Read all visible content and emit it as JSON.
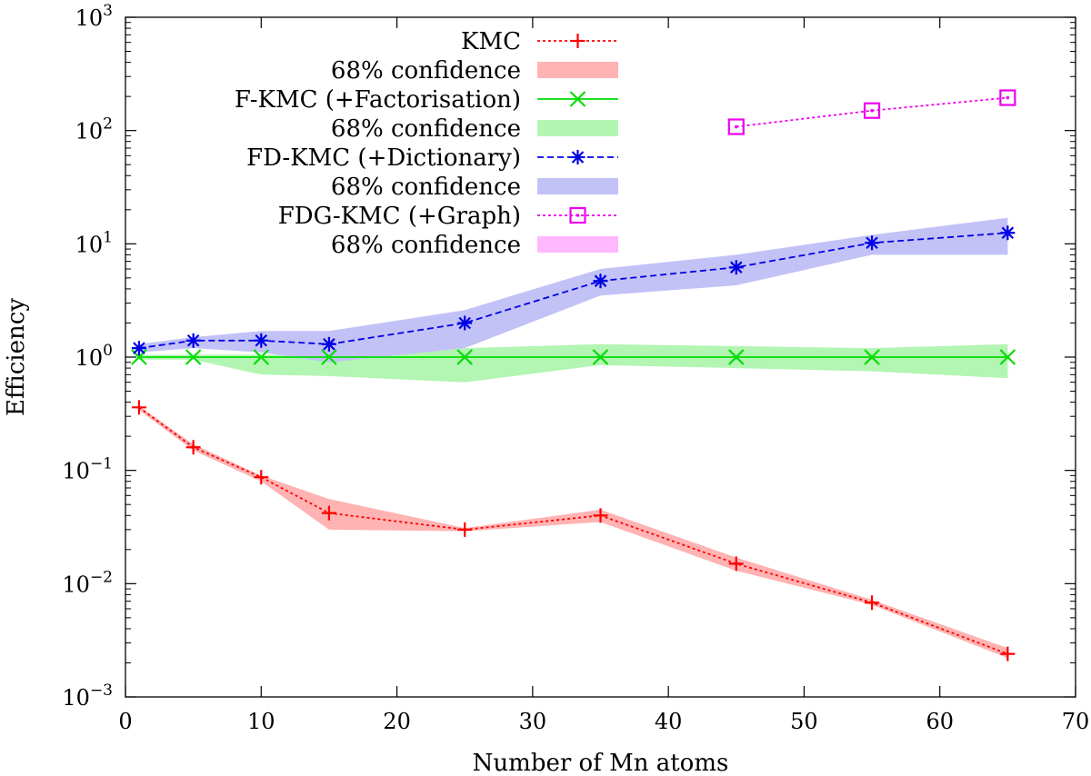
{
  "chart_data": {
    "type": "line",
    "title": "",
    "xlabel": "Number of Mn atoms",
    "ylabel": "Efficiency",
    "xlim": [
      0,
      70
    ],
    "ylim": [
      0.001,
      1000
    ],
    "y_scale": "log",
    "grid": false,
    "legend_position": "top-left",
    "x_ticks": [
      0,
      10,
      20,
      30,
      40,
      50,
      60,
      70
    ],
    "x_tick_labels": [
      "0",
      "10",
      "20",
      "30",
      "40",
      "50",
      "60",
      "70"
    ],
    "y_ticks": [
      0.001,
      0.01,
      0.1,
      1,
      10,
      100,
      1000
    ],
    "y_tick_base": "10",
    "y_tick_exponents": [
      "−3",
      "−2",
      "−1",
      "0",
      "1",
      "2",
      "3"
    ],
    "series": [
      {
        "name": "KMC",
        "color": "#ff0000",
        "marker": "plus",
        "line_style": "dotted",
        "x": [
          1,
          5,
          10,
          15,
          25,
          35,
          45,
          55,
          65
        ],
        "y": [
          0.36,
          0.16,
          0.087,
          0.042,
          0.03,
          0.04,
          0.015,
          0.0068,
          0.0024
        ],
        "band_name": "68% confidence",
        "band_color": "#ffb3b3",
        "band_lower": [
          0.34,
          0.15,
          0.08,
          0.03,
          0.029,
          0.035,
          0.013,
          0.0065,
          0.0022
        ],
        "band_upper": [
          0.37,
          0.17,
          0.09,
          0.056,
          0.031,
          0.045,
          0.017,
          0.0072,
          0.0027
        ]
      },
      {
        "name": "F-KMC (+Factorisation)",
        "color": "#00dd00",
        "marker": "x",
        "line_style": "solid",
        "x": [
          1,
          5,
          10,
          15,
          25,
          35,
          45,
          55,
          65
        ],
        "y": [
          1,
          1,
          1,
          1,
          1,
          1,
          1,
          1,
          1
        ],
        "band_name": "68% confidence",
        "band_color": "#b3f5b3",
        "band_lower": [
          0.95,
          0.95,
          0.7,
          0.68,
          0.6,
          0.85,
          0.8,
          0.75,
          0.65
        ],
        "band_upper": [
          1.05,
          1.05,
          1.05,
          1.05,
          1.2,
          1.3,
          1.25,
          1.2,
          1.3
        ]
      },
      {
        "name": "FD-KMC (+Dictionary)",
        "color": "#0000e6",
        "marker": "asterisk",
        "line_style": "dashed",
        "x": [
          1,
          5,
          10,
          15,
          25,
          35,
          45,
          55,
          65
        ],
        "y": [
          1.2,
          1.4,
          1.4,
          1.3,
          2.0,
          4.7,
          6.2,
          10.2,
          12.5
        ],
        "band_name": "68% confidence",
        "band_color": "#c2c2f7",
        "band_lower": [
          1.1,
          1.2,
          1.1,
          0.9,
          1.2,
          3.5,
          4.3,
          8.0,
          8.0
        ],
        "band_upper": [
          1.3,
          1.5,
          1.7,
          1.7,
          2.6,
          6.0,
          8.0,
          12.0,
          17.0
        ]
      },
      {
        "name": "FDG-KMC (+Graph)",
        "color": "#ee00ee",
        "marker": "square-dot",
        "line_style": "dotted",
        "x": [
          45,
          55,
          65
        ],
        "y": [
          108,
          150,
          195
        ],
        "band_name": "68% confidence",
        "band_color": "#ffb8ff",
        "band_lower": [],
        "band_upper": []
      }
    ]
  }
}
